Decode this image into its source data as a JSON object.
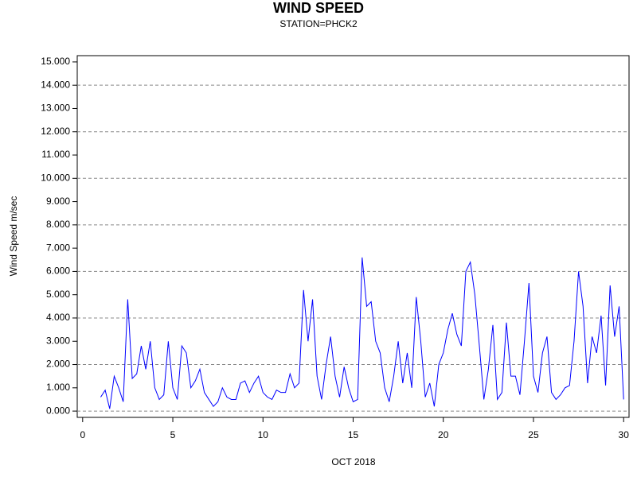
{
  "chart_data": {
    "type": "line",
    "title": "WIND SPEED",
    "subtitle": "STATION=PHCK2",
    "y_label": "Wind Speed m/sec",
    "x_label": "OCT 2018",
    "x": [
      1,
      1.25,
      1.5,
      1.75,
      2,
      2.25,
      2.5,
      2.75,
      3,
      3.25,
      3.5,
      3.75,
      4,
      4.25,
      4.5,
      4.75,
      5,
      5.25,
      5.5,
      5.75,
      6,
      6.25,
      6.5,
      6.75,
      7,
      7.25,
      7.5,
      7.75,
      8,
      8.25,
      8.5,
      8.75,
      9,
      9.25,
      9.5,
      9.75,
      10,
      10.25,
      10.5,
      10.75,
      11,
      11.25,
      11.5,
      11.75,
      12,
      12.25,
      12.5,
      12.75,
      13,
      13.25,
      13.5,
      13.75,
      14,
      14.25,
      14.5,
      14.75,
      15,
      15.25,
      15.5,
      15.75,
      16,
      16.25,
      16.5,
      16.75,
      17,
      17.25,
      17.5,
      17.75,
      18,
      18.25,
      18.5,
      18.75,
      19,
      19.25,
      19.5,
      19.75,
      20,
      20.25,
      20.5,
      20.75,
      21,
      21.25,
      21.5,
      21.75,
      22,
      22.25,
      22.5,
      22.75,
      23,
      23.25,
      23.5,
      23.75,
      24,
      24.25,
      24.5,
      24.75,
      25,
      25.25,
      25.5,
      25.75,
      26,
      26.25,
      26.5,
      26.75,
      27,
      27.25,
      27.5,
      27.75,
      28,
      28.25,
      28.5,
      28.75,
      29,
      29.25,
      29.5,
      29.75,
      30
    ],
    "series": [
      {
        "name": "Wind Speed",
        "color": "#0000ff",
        "values": [
          0.6,
          0.9,
          0.1,
          1.5,
          1.0,
          0.4,
          4.8,
          1.4,
          1.6,
          2.8,
          1.8,
          3.0,
          1.0,
          0.5,
          0.7,
          3.0,
          1.0,
          0.5,
          2.8,
          2.5,
          1.0,
          1.3,
          1.8,
          0.8,
          0.5,
          0.2,
          0.4,
          1.0,
          0.6,
          0.5,
          0.5,
          1.2,
          1.3,
          0.8,
          1.2,
          1.5,
          0.8,
          0.6,
          0.5,
          0.9,
          0.8,
          0.8,
          1.6,
          1.0,
          1.2,
          5.2,
          3.0,
          4.8,
          1.5,
          0.5,
          2.0,
          3.2,
          1.5,
          0.6,
          1.9,
          1.0,
          0.4,
          0.5,
          6.6,
          4.5,
          4.7,
          3.0,
          2.5,
          1.0,
          0.4,
          1.5,
          3.0,
          1.2,
          2.5,
          1.0,
          4.9,
          3.0,
          0.6,
          1.2,
          0.2,
          2.0,
          2.5,
          3.5,
          4.2,
          3.3,
          2.8,
          6.0,
          6.4,
          5.0,
          2.8,
          0.5,
          1.8,
          3.7,
          0.5,
          0.8,
          3.8,
          1.5,
          1.5,
          0.7,
          3.0,
          5.5,
          1.5,
          0.8,
          2.5,
          3.2,
          0.8,
          0.5,
          0.7,
          1.0,
          1.1,
          3.0,
          6.0,
          4.5,
          1.2,
          3.2,
          2.5,
          4.1,
          1.1,
          5.4,
          3.2,
          4.5,
          0.5
        ]
      }
    ],
    "xlim": [
      -0.3,
      30.3
    ],
    "xticks": [
      0,
      5,
      10,
      15,
      20,
      25,
      30
    ],
    "ylim": [
      -0.27,
      15.27
    ],
    "yticks": [
      {
        "value": 0,
        "label": "0.000"
      },
      {
        "value": 1,
        "label": "1.000"
      },
      {
        "value": 2,
        "label": "2.000"
      },
      {
        "value": 3,
        "label": "3.000"
      },
      {
        "value": 4,
        "label": "4.000"
      },
      {
        "value": 5,
        "label": "5.000"
      },
      {
        "value": 6,
        "label": "6.000"
      },
      {
        "value": 7,
        "label": "7.000"
      },
      {
        "value": 8,
        "label": "8.000"
      },
      {
        "value": 9,
        "label": "9.000"
      },
      {
        "value": 10,
        "label": "10.000"
      },
      {
        "value": 11,
        "label": "11.000"
      },
      {
        "value": 12,
        "label": "12.000"
      },
      {
        "value": 13,
        "label": "13.000"
      },
      {
        "value": 14,
        "label": "14.000"
      },
      {
        "value": 15,
        "label": "15.000"
      }
    ],
    "grid": true
  }
}
